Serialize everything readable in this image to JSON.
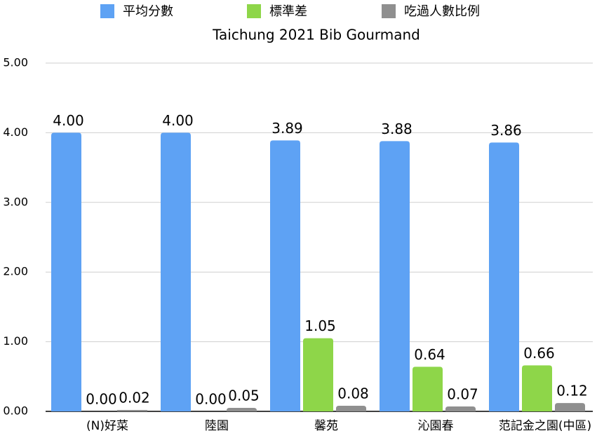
{
  "chart_data": {
    "type": "bar",
    "title": "Taichung 2021 Bib Gourmand",
    "categories": [
      "(N)好菜",
      "陸園",
      "馨苑",
      "沁園春",
      "范記金之園(中區)"
    ],
    "series": [
      {
        "name": "平均分數",
        "color": "#5ea2f4",
        "values": [
          4.0,
          4.0,
          3.89,
          3.88,
          3.86
        ],
        "value_labels": [
          "4.00",
          "4.00",
          "3.89",
          "3.88",
          "3.86"
        ]
      },
      {
        "name": "標準差",
        "color": "#8ed649",
        "values": [
          0,
          0,
          1.05,
          0.64,
          0.66
        ],
        "value_labels": [
          "0.00",
          "0.00",
          "1.05",
          "0.64",
          "0.66"
        ]
      },
      {
        "name": "吃過人數比例",
        "color": "#8f8f8f",
        "values": [
          0.02,
          0.05,
          0.08,
          0.07,
          0.12
        ],
        "value_labels": [
          "0.02",
          "0.05",
          "0.08",
          "0.07",
          "0.12"
        ]
      }
    ],
    "ylim": [
      0,
      5
    ],
    "yticks": [
      {
        "value": 0,
        "label": "0.00"
      },
      {
        "value": 1,
        "label": "1.00"
      },
      {
        "value": 2,
        "label": "2.00"
      },
      {
        "value": 3,
        "label": "3.00"
      },
      {
        "value": 4,
        "label": "4.00"
      },
      {
        "value": 5,
        "label": "5.00"
      }
    ],
    "grid": true,
    "legend": "top"
  }
}
